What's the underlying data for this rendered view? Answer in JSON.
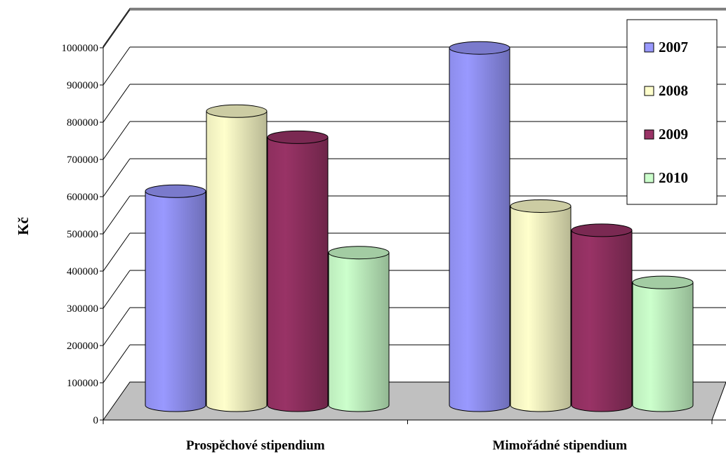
{
  "chart_data": {
    "type": "bar",
    "style": "3d-cylinder",
    "title": "",
    "xlabel": "",
    "ylabel": "Kč",
    "ylim": [
      0,
      1000000
    ],
    "ytick_step": 100000,
    "yticks": [
      "0",
      "100000",
      "200000",
      "300000",
      "400000",
      "500000",
      "600000",
      "700000",
      "800000",
      "900000",
      "1000000"
    ],
    "grid": true,
    "legend_position": "top-right",
    "categories": [
      "Prospěchové stipendium",
      "Mimořádné stipendium"
    ],
    "series": [
      {
        "name": "2007",
        "color": "#9999ff",
        "values": [
          575000,
          960000
        ]
      },
      {
        "name": "2008",
        "color": "#ffffcc",
        "values": [
          790000,
          535000
        ]
      },
      {
        "name": "2009",
        "color": "#993366",
        "values": [
          720000,
          470000
        ]
      },
      {
        "name": "2010",
        "color": "#ccffcc",
        "values": [
          410000,
          330000
        ]
      }
    ]
  }
}
